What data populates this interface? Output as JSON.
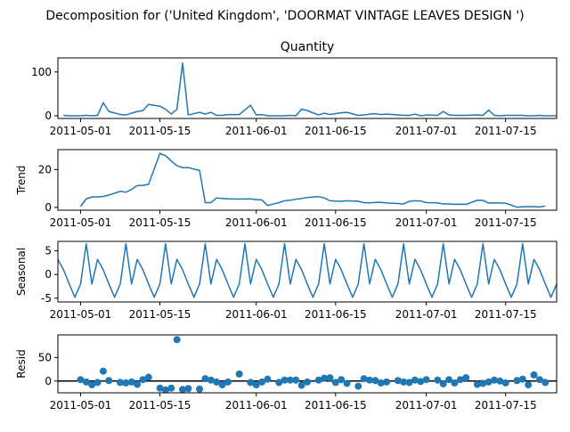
{
  "suptitle": "Decomposition for ('United Kingdom', 'DOORMAT VINTAGE LEAVES DESIGN ')",
  "colors": {
    "series": "#1f77b4",
    "zero_line": "#000000",
    "axes": "#000000"
  },
  "chart_data": [
    {
      "type": "line",
      "title": "Quantity",
      "ylabel": "",
      "x_start": "2011-04-28",
      "x": [
        "2011-04-28",
        "2011-04-29",
        "2011-05-01",
        "2011-05-02",
        "2011-05-03",
        "2011-05-04",
        "2011-05-05",
        "2011-05-06",
        "2011-05-08",
        "2011-05-09",
        "2011-05-10",
        "2011-05-11",
        "2011-05-12",
        "2011-05-13",
        "2011-05-15",
        "2011-05-16",
        "2011-05-17",
        "2011-05-18",
        "2011-05-19",
        "2011-05-20",
        "2011-05-22",
        "2011-05-23",
        "2011-05-24",
        "2011-05-25",
        "2011-05-26",
        "2011-05-27",
        "2011-05-29",
        "2011-05-31",
        "2011-06-01",
        "2011-06-02",
        "2011-06-03",
        "2011-06-05",
        "2011-06-06",
        "2011-06-07",
        "2011-06-08",
        "2011-06-09",
        "2011-06-10",
        "2011-06-12",
        "2011-06-13",
        "2011-06-14",
        "2011-06-15",
        "2011-06-16",
        "2011-06-17",
        "2011-06-19",
        "2011-06-20",
        "2011-06-21",
        "2011-06-22",
        "2011-06-23",
        "2011-06-24",
        "2011-06-26",
        "2011-06-27",
        "2011-06-28",
        "2011-06-29",
        "2011-06-30",
        "2011-07-01",
        "2011-07-03",
        "2011-07-04",
        "2011-07-05",
        "2011-07-06",
        "2011-07-07",
        "2011-07-08",
        "2011-07-10",
        "2011-07-11",
        "2011-07-12",
        "2011-07-13",
        "2011-07-14",
        "2011-07-15",
        "2011-07-17",
        "2011-07-18",
        "2011-07-19",
        "2011-07-20",
        "2011-07-21",
        "2011-07-22",
        "2011-07-24"
      ],
      "y": [
        1,
        0,
        0,
        1,
        0,
        1,
        30,
        10,
        3,
        2,
        6,
        10,
        12,
        26,
        22,
        15,
        4,
        15,
        120,
        2,
        8,
        4,
        8,
        1,
        1,
        3,
        3,
        24,
        2,
        3,
        0,
        0,
        0,
        1,
        0,
        15,
        12,
        2,
        6,
        3,
        5,
        7,
        8,
        1,
        2,
        4,
        5,
        3,
        4,
        2,
        1,
        1,
        4,
        0,
        2,
        1,
        10,
        2,
        1,
        1,
        1,
        2,
        1,
        13,
        1,
        0,
        1,
        1,
        1,
        0,
        0,
        1,
        0,
        0
      ],
      "ylim": [
        -6,
        132
      ],
      "yticks": [
        0,
        100
      ]
    },
    {
      "type": "line",
      "title": "",
      "ylabel": "Trend",
      "x": [
        "2011-05-01",
        "2011-05-02",
        "2011-05-03",
        "2011-05-04",
        "2011-05-05",
        "2011-05-06",
        "2011-05-08",
        "2011-05-09",
        "2011-05-10",
        "2011-05-11",
        "2011-05-12",
        "2011-05-13",
        "2011-05-15",
        "2011-05-16",
        "2011-05-17",
        "2011-05-18",
        "2011-05-19",
        "2011-05-20",
        "2011-05-22",
        "2011-05-23",
        "2011-05-24",
        "2011-05-25",
        "2011-05-26",
        "2011-05-27",
        "2011-05-29",
        "2011-05-31",
        "2011-06-01",
        "2011-06-02",
        "2011-06-03",
        "2011-06-05",
        "2011-06-06",
        "2011-06-07",
        "2011-06-08",
        "2011-06-09",
        "2011-06-10",
        "2011-06-12",
        "2011-06-13",
        "2011-06-14",
        "2011-06-15",
        "2011-06-16",
        "2011-06-17",
        "2011-06-19",
        "2011-06-20",
        "2011-06-21",
        "2011-06-22",
        "2011-06-23",
        "2011-06-24",
        "2011-06-26",
        "2011-06-27",
        "2011-06-28",
        "2011-06-29",
        "2011-06-30",
        "2011-07-01",
        "2011-07-03",
        "2011-07-04",
        "2011-07-05",
        "2011-07-06",
        "2011-07-07",
        "2011-07-08",
        "2011-07-10",
        "2011-07-11",
        "2011-07-12",
        "2011-07-13",
        "2011-07-14",
        "2011-07-15",
        "2011-07-17",
        "2011-07-18",
        "2011-07-19",
        "2011-07-20",
        "2011-07-21",
        "2011-07-22"
      ],
      "y": [
        0.5,
        4.5,
        5.5,
        5.5,
        5.8,
        6.5,
        8.5,
        8,
        9.5,
        11.5,
        11.6,
        12.2,
        28.5,
        27.3,
        24.5,
        22,
        21,
        21,
        19.5,
        2.5,
        2.5,
        5,
        4.7,
        4.5,
        4.4,
        4.5,
        4.1,
        3.9,
        1,
        2.5,
        3.5,
        3.8,
        4.3,
        4.7,
        5.2,
        5.7,
        5,
        3.5,
        3.3,
        3.2,
        3.5,
        3.2,
        2.5,
        2.4,
        2.6,
        2.7,
        2.3,
        2,
        1.8,
        3.2,
        3.5,
        3.4,
        2.5,
        2.4,
        1.8,
        1.8,
        1.6,
        1.7,
        1.6,
        3.8,
        3.7,
        2.3,
        2.3,
        2.3,
        2.2,
        0.1,
        0.3,
        0.4,
        0.4,
        0.2,
        0.7
      ],
      "ylim": [
        -1.5,
        30.5
      ],
      "yticks": [
        0,
        20
      ]
    },
    {
      "type": "line",
      "title": "",
      "ylabel": "Seasonal",
      "pattern": [
        3.2,
        1.0,
        -2.0,
        -4.8,
        -2.0,
        6.5,
        -2.0
      ],
      "ylim": [
        -5.8,
        7.0
      ],
      "yticks": [
        -5,
        0,
        5
      ]
    },
    {
      "type": "scatter",
      "title": "",
      "ylabel": "Resid",
      "x": [
        "2011-05-01",
        "2011-05-02",
        "2011-05-03",
        "2011-05-04",
        "2011-05-05",
        "2011-05-06",
        "2011-05-08",
        "2011-05-09",
        "2011-05-10",
        "2011-05-11",
        "2011-05-12",
        "2011-05-13",
        "2011-05-15",
        "2011-05-16",
        "2011-05-17",
        "2011-05-18",
        "2011-05-19",
        "2011-05-20",
        "2011-05-22",
        "2011-05-23",
        "2011-05-24",
        "2011-05-25",
        "2011-05-26",
        "2011-05-27",
        "2011-05-29",
        "2011-05-31",
        "2011-06-01",
        "2011-06-02",
        "2011-06-03",
        "2011-06-05",
        "2011-06-06",
        "2011-06-07",
        "2011-06-08",
        "2011-06-09",
        "2011-06-10",
        "2011-06-12",
        "2011-06-13",
        "2011-06-14",
        "2011-06-15",
        "2011-06-16",
        "2011-06-17",
        "2011-06-19",
        "2011-06-20",
        "2011-06-21",
        "2011-06-22",
        "2011-06-23",
        "2011-06-24",
        "2011-06-26",
        "2011-06-27",
        "2011-06-28",
        "2011-06-29",
        "2011-06-30",
        "2011-07-01",
        "2011-07-03",
        "2011-07-04",
        "2011-07-05",
        "2011-07-06",
        "2011-07-07",
        "2011-07-08",
        "2011-07-10",
        "2011-07-11",
        "2011-07-12",
        "2011-07-13",
        "2011-07-14",
        "2011-07-15",
        "2011-07-17",
        "2011-07-18",
        "2011-07-19",
        "2011-07-20",
        "2011-07-21",
        "2011-07-22"
      ],
      "y": [
        3,
        -2,
        -8,
        -3,
        21,
        1,
        -3,
        -4,
        -2,
        -7,
        3,
        8,
        -15,
        -19,
        -15,
        88,
        -18,
        -16,
        -17,
        5,
        2,
        -2,
        -8,
        -2,
        15,
        -3,
        -8,
        -2,
        4,
        -3,
        2,
        2,
        2,
        -9,
        -2,
        2,
        6,
        7,
        -3,
        3,
        -5,
        -11,
        5,
        2,
        1,
        -4,
        -2,
        1,
        -2,
        -3,
        2,
        -1,
        3,
        2,
        -6,
        3,
        -4,
        3,
        7,
        -7,
        -5,
        -2,
        2,
        0,
        -4,
        1,
        4,
        -8,
        13,
        3,
        -3
      ],
      "ylim": [
        -25,
        98
      ],
      "yticks": [
        0,
        50
      ],
      "zero_line": true
    }
  ],
  "x_ticks": [
    "2011-05-01",
    "2011-05-15",
    "2011-06-01",
    "2011-06-15",
    "2011-07-01",
    "2011-07-15"
  ],
  "x_range": [
    "2011-04-27",
    "2011-07-24"
  ]
}
